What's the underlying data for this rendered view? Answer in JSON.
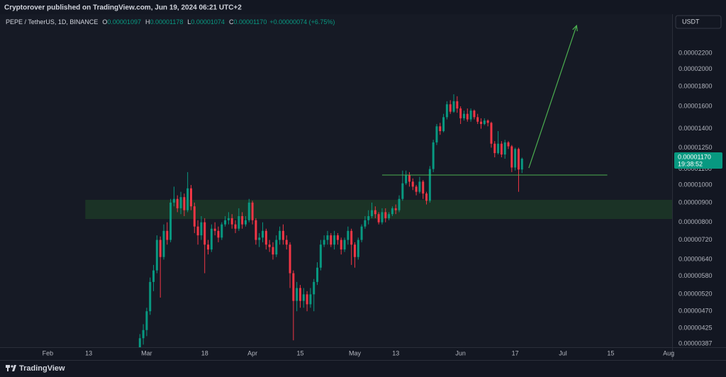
{
  "header": "Cryptorover published on TradingView.com, Jun 19, 2024 06:21 UTC+2",
  "footer": "TradingView",
  "chart_data": {
    "type": "candlestick",
    "legend": {
      "symbol": "PEPE / TetherUS, 1D, BINANCE",
      "fields": [
        {
          "key": "O",
          "value": "0.00001097"
        },
        {
          "key": "H",
          "value": "0.00001178"
        },
        {
          "key": "L",
          "value": "0.00001074"
        },
        {
          "key": "C",
          "value": "0.00001170"
        }
      ],
      "change": "+0.00000074 (+6.75%)"
    },
    "currency": "USDT",
    "countdown": "19:38:52",
    "up_color": "#089981",
    "down_color": "#f23645",
    "log_scale": true,
    "grid": false,
    "xlim": [
      "2024-01-18",
      "2024-08-02"
    ],
    "ylim": [
      3.79e-06,
      2.777e-05
    ],
    "xticks": [
      {
        "value": "2024-02-01",
        "label": "Feb"
      },
      {
        "value": "2024-02-13",
        "label": "13"
      },
      {
        "value": "2024-03-01",
        "label": "Mar"
      },
      {
        "value": "2024-03-18",
        "label": "18"
      },
      {
        "value": "2024-04-01",
        "label": "Apr"
      },
      {
        "value": "2024-04-15",
        "label": "15"
      },
      {
        "value": "2024-05-01",
        "label": "May"
      },
      {
        "value": "2024-05-13",
        "label": "13"
      },
      {
        "value": "2024-06-01",
        "label": "Jun"
      },
      {
        "value": "2024-06-17",
        "label": "17"
      },
      {
        "value": "2024-07-01",
        "label": "Jul"
      },
      {
        "value": "2024-07-15",
        "label": "15"
      },
      {
        "value": "2024-08-01",
        "label": "Aug"
      }
    ],
    "yticks": [
      {
        "value": 2.2e-05,
        "label": "0.00002200"
      },
      {
        "value": 2e-05,
        "label": "0.00002000"
      },
      {
        "value": 1.8e-05,
        "label": "0.00001800"
      },
      {
        "value": 1.6e-05,
        "label": "0.00001600"
      },
      {
        "value": 1.4e-05,
        "label": "0.00001400"
      },
      {
        "value": 1.25e-05,
        "label": "0.00001250"
      },
      {
        "value": 1.1e-05,
        "label": "0.00001100"
      },
      {
        "value": 1e-05,
        "label": "0.00001000"
      },
      {
        "value": 9e-06,
        "label": "0.00000900"
      },
      {
        "value": 8e-06,
        "label": "0.00000800"
      },
      {
        "value": 7.2e-06,
        "label": "0.00000720"
      },
      {
        "value": 6.4e-06,
        "label": "0.00000640"
      },
      {
        "value": 5.8e-06,
        "label": "0.00000580"
      },
      {
        "value": 5.2e-06,
        "label": "0.00000520"
      },
      {
        "value": 4.7e-06,
        "label": "0.00000470"
      },
      {
        "value": 4.25e-06,
        "label": "0.00000425"
      },
      {
        "value": 3.87e-06,
        "label": "0.00000387"
      }
    ],
    "zone": {
      "from": "2024-02-12",
      "to": "2024-08-02",
      "low": 8.16e-06,
      "high": 9.15e-06,
      "color": "#1b3326"
    },
    "level": {
      "from": "2024-05-09",
      "to": "2024-07-14",
      "value": 1.061e-05,
      "color": "#4caf50"
    },
    "arrow": {
      "from": [
        "2024-06-21",
        1.107e-05
      ],
      "to": [
        "2024-07-05",
        2.594e-05
      ],
      "color": "#4caf50"
    },
    "x": [
      "2024-02-28",
      "2024-02-29",
      "2024-03-01",
      "2024-03-02",
      "2024-03-03",
      "2024-03-04",
      "2024-03-05",
      "2024-03-06",
      "2024-03-07",
      "2024-03-08",
      "2024-03-09",
      "2024-03-10",
      "2024-03-11",
      "2024-03-12",
      "2024-03-13",
      "2024-03-14",
      "2024-03-15",
      "2024-03-16",
      "2024-03-17",
      "2024-03-18",
      "2024-03-19",
      "2024-03-20",
      "2024-03-21",
      "2024-03-22",
      "2024-03-23",
      "2024-03-24",
      "2024-03-25",
      "2024-03-26",
      "2024-03-27",
      "2024-03-28",
      "2024-03-29",
      "2024-03-30",
      "2024-03-31",
      "2024-04-01",
      "2024-04-02",
      "2024-04-03",
      "2024-04-04",
      "2024-04-05",
      "2024-04-06",
      "2024-04-07",
      "2024-04-08",
      "2024-04-09",
      "2024-04-10",
      "2024-04-11",
      "2024-04-12",
      "2024-04-13",
      "2024-04-14",
      "2024-04-15",
      "2024-04-16",
      "2024-04-17",
      "2024-04-18",
      "2024-04-19",
      "2024-04-20",
      "2024-04-21",
      "2024-04-22",
      "2024-04-23",
      "2024-04-24",
      "2024-04-25",
      "2024-04-26",
      "2024-04-27",
      "2024-04-28",
      "2024-04-29",
      "2024-04-30",
      "2024-05-01",
      "2024-05-02",
      "2024-05-03",
      "2024-05-04",
      "2024-05-05",
      "2024-05-06",
      "2024-05-07",
      "2024-05-08",
      "2024-05-09",
      "2024-05-10",
      "2024-05-11",
      "2024-05-12",
      "2024-05-13",
      "2024-05-14",
      "2024-05-15",
      "2024-05-16",
      "2024-05-17",
      "2024-05-18",
      "2024-05-19",
      "2024-05-20",
      "2024-05-21",
      "2024-05-22",
      "2024-05-23",
      "2024-05-24",
      "2024-05-25",
      "2024-05-26",
      "2024-05-27",
      "2024-05-28",
      "2024-05-29",
      "2024-05-30",
      "2024-05-31",
      "2024-06-01",
      "2024-06-02",
      "2024-06-03",
      "2024-06-04",
      "2024-06-05",
      "2024-06-06",
      "2024-06-07",
      "2024-06-08",
      "2024-06-09",
      "2024-06-10",
      "2024-06-11",
      "2024-06-12",
      "2024-06-13",
      "2024-06-14",
      "2024-06-15",
      "2024-06-16",
      "2024-06-17",
      "2024-06-18",
      "2024-06-19"
    ],
    "open": [
      3.7e-06,
      4e-06,
      4.2e-06,
      4.7e-06,
      5.6e-06,
      6e-06,
      7.2e-06,
      6.5e-06,
      7.6e-06,
      7.2e-06,
      9e-06,
      9.2e-06,
      8.7e-06,
      9.3e-06,
      8.6e-06,
      9.8e-06,
      8.8e-06,
      7.8e-06,
      7.4e-06,
      8e-06,
      7e-06,
      6.8e-06,
      7.7e-06,
      7.6e-06,
      7.3e-06,
      7.9e-06,
      8.1e-06,
      8.2e-06,
      7.9e-06,
      7.7e-06,
      8.3e-06,
      7.9e-06,
      8.1e-06,
      9e-06,
      8.1e-06,
      7.2e-06,
      7.3e-06,
      7.6e-06,
      7e-06,
      6.9e-06,
      6.6e-06,
      7.2e-06,
      7.6e-06,
      7.2e-06,
      7e-06,
      5.9e-06,
      5e-06,
      5.4e-06,
      5e-06,
      5.2e-06,
      4.9e-06,
      5.2e-06,
      5.6e-06,
      6.1e-06,
      7e-06,
      7.2e-06,
      7.4e-06,
      7e-06,
      7.4e-06,
      7.2e-06,
      6.8e-06,
      7.2e-06,
      7.6e-06,
      7e-06,
      6.5e-06,
      7.2e-06,
      7.8e-06,
      8.1e-06,
      8.3e-06,
      8.6e-06,
      8.4e-06,
      8e-06,
      8.5e-06,
      8.2e-06,
      8.4e-06,
      8.7e-06,
      8.6e-06,
      9.2e-06,
      1.01e-05,
      1.06e-05,
      1.02e-05,
      9.9e-06,
      9.6e-06,
      1.02e-05,
      9.5e-06,
      9.1e-06,
      1.1e-05,
      1.29e-05,
      1.42e-05,
      1.38e-05,
      1.5e-05,
      1.62e-05,
      1.55e-05,
      1.65e-05,
      1.58e-05,
      1.49e-05,
      1.53e-05,
      1.48e-05,
      1.56e-05,
      1.5e-05,
      1.46e-05,
      1.44e-05,
      1.47e-05,
      1.45e-05,
      1.28e-05,
      1.21e-05,
      1.28e-05,
      1.2e-05,
      1.29e-05,
      1.26e-05,
      1.11e-05,
      1.24e-05,
      1.097e-05
    ],
    "high": [
      4.1e-06,
      4.35e-06,
      4.8e-06,
      5.75e-06,
      6.2e-06,
      7.4e-06,
      7.35e-06,
      7.9e-06,
      8e-06,
      9.2e-06,
      9.9e-06,
      9.4e-06,
      9.6e-06,
      9.5e-06,
      1.08e-05,
      1e-05,
      9e-06,
      8.1e-06,
      8.3e-06,
      8.2e-06,
      7.2e-06,
      7.9e-06,
      8e-06,
      7.8e-06,
      8e-06,
      8.3e-06,
      8.5e-06,
      8.4e-06,
      8.1e-06,
      8.7e-06,
      8.5e-06,
      8.3e-06,
      9.2e-06,
      9.1e-06,
      8.2e-06,
      7.5e-06,
      8e-06,
      7.7e-06,
      7.2e-06,
      7.1e-06,
      7.4e-06,
      7.8e-06,
      7.9e-06,
      7.4e-06,
      7.1e-06,
      6e-06,
      5.6e-06,
      5.5e-06,
      5.4e-06,
      5.3e-06,
      5.4e-06,
      5.7e-06,
      6.3e-06,
      7.2e-06,
      7.4e-06,
      7.6e-06,
      7.5e-06,
      7.6e-06,
      7.5e-06,
      7.3e-06,
      7.3e-06,
      7.8e-06,
      7.7e-06,
      7.1e-06,
      7.3e-06,
      7.9e-06,
      8.3e-06,
      8.6e-06,
      9e-06,
      8.8e-06,
      8.5e-06,
      8.7e-06,
      8.7e-06,
      8.5e-06,
      8.8e-06,
      8.9e-06,
      9.4e-06,
      1.09e-05,
      1.09e-05,
      1.08e-05,
      1.04e-05,
      1e-05,
      1.05e-05,
      1.03e-05,
      9.6e-06,
      1.12e-05,
      1.31e-05,
      1.44e-05,
      1.45e-05,
      1.53e-05,
      1.65e-05,
      1.66e-05,
      1.72e-05,
      1.7e-05,
      1.6e-05,
      1.56e-05,
      1.58e-05,
      1.58e-05,
      1.57e-05,
      1.53e-05,
      1.49e-05,
      1.49e-05,
      1.48e-05,
      1.46e-05,
      1.3e-05,
      1.38e-05,
      1.3e-05,
      1.31e-05,
      1.3e-05,
      1.27e-05,
      1.25e-05,
      1.25e-05,
      1.178e-05
    ],
    "low": [
      3.6e-06,
      3.85e-06,
      4.05e-06,
      4.6e-06,
      5.3e-06,
      5.9e-06,
      5.1e-06,
      6.4e-06,
      7e-06,
      7.1e-06,
      8.8e-06,
      8.5e-06,
      8.4e-06,
      8.3e-06,
      8.5e-06,
      8.6e-06,
      7.5e-06,
      7e-06,
      7.2e-06,
      5.9e-06,
      6.6e-06,
      6.7e-06,
      7.4e-06,
      7.1e-06,
      7.2e-06,
      7.8e-06,
      7.9e-06,
      7.7e-06,
      7.5e-06,
      7.6e-06,
      7.7e-06,
      7.8e-06,
      8e-06,
      7.9e-06,
      7e-06,
      6.9e-06,
      7.1e-06,
      6.8e-06,
      6.7e-06,
      6.4e-06,
      6.5e-06,
      7e-06,
      7e-06,
      6.8e-06,
      5.4e-06,
      3.95e-06,
      4.7e-06,
      4.8e-06,
      4.8e-06,
      4.7e-06,
      4.8e-06,
      4.7e-06,
      5.5e-06,
      6e-06,
      6.9e-06,
      7e-06,
      6.9e-06,
      6.8e-06,
      7e-06,
      6.6e-06,
      6.7e-06,
      7e-06,
      6.2e-06,
      6.1e-06,
      6.4e-06,
      7.1e-06,
      7.7e-06,
      7.9e-06,
      8.2e-06,
      8.2e-06,
      7.9e-06,
      7.9e-06,
      8e-06,
      8.1e-06,
      8.3e-06,
      8.4e-06,
      8.5e-06,
      9.1e-06,
      1e-05,
      9.9e-06,
      9.7e-06,
      9.4e-06,
      9.5e-06,
      9.2e-06,
      8.9e-06,
      9e-06,
      1.08e-05,
      1.27e-05,
      1.35e-05,
      1.37e-05,
      1.48e-05,
      1.53e-05,
      1.54e-05,
      1.54e-05,
      1.44e-05,
      1.47e-05,
      1.46e-05,
      1.46e-05,
      1.48e-05,
      1.44e-05,
      1.4e-05,
      1.43e-05,
      1.42e-05,
      1.25e-05,
      1.18e-05,
      1.2e-05,
      1.18e-05,
      1.17e-05,
      1.24e-05,
      1.08e-05,
      1.09e-05,
      9.6e-06,
      1.074e-05
    ],
    "close": [
      4e-06,
      4.2e-06,
      4.7e-06,
      5.6e-06,
      6e-06,
      7.2e-06,
      6.5e-06,
      7.6e-06,
      7.2e-06,
      9e-06,
      9.2e-06,
      8.7e-06,
      9.3e-06,
      8.6e-06,
      9.8e-06,
      8.8e-06,
      7.8e-06,
      7.4e-06,
      8e-06,
      7e-06,
      6.8e-06,
      7.7e-06,
      7.6e-06,
      7.3e-06,
      7.9e-06,
      8.1e-06,
      8.2e-06,
      7.9e-06,
      7.7e-06,
      8.3e-06,
      7.9e-06,
      8.1e-06,
      9e-06,
      8.1e-06,
      7.2e-06,
      7.3e-06,
      7.6e-06,
      7e-06,
      6.9e-06,
      6.6e-06,
      7.2e-06,
      7.6e-06,
      7.2e-06,
      7e-06,
      5.9e-06,
      5e-06,
      5.4e-06,
      5e-06,
      5.2e-06,
      4.9e-06,
      5.2e-06,
      5.6e-06,
      6.1e-06,
      7e-06,
      7.2e-06,
      7.4e-06,
      7e-06,
      7.4e-06,
      7.2e-06,
      6.8e-06,
      7.2e-06,
      7.6e-06,
      7e-06,
      6.5e-06,
      7.2e-06,
      7.8e-06,
      8.1e-06,
      8.3e-06,
      8.6e-06,
      8.4e-06,
      8e-06,
      8.5e-06,
      8.2e-06,
      8.4e-06,
      8.7e-06,
      8.6e-06,
      9.2e-06,
      1.01e-05,
      1.06e-05,
      1.02e-05,
      9.9e-06,
      9.6e-06,
      1.02e-05,
      9.5e-06,
      9.1e-06,
      1.1e-05,
      1.29e-05,
      1.42e-05,
      1.38e-05,
      1.5e-05,
      1.62e-05,
      1.55e-05,
      1.65e-05,
      1.58e-05,
      1.49e-05,
      1.53e-05,
      1.48e-05,
      1.56e-05,
      1.5e-05,
      1.46e-05,
      1.44e-05,
      1.47e-05,
      1.45e-05,
      1.28e-05,
      1.21e-05,
      1.28e-05,
      1.2e-05,
      1.29e-05,
      1.26e-05,
      1.11e-05,
      1.24e-05,
      1.097e-05,
      1.17e-05
    ]
  }
}
